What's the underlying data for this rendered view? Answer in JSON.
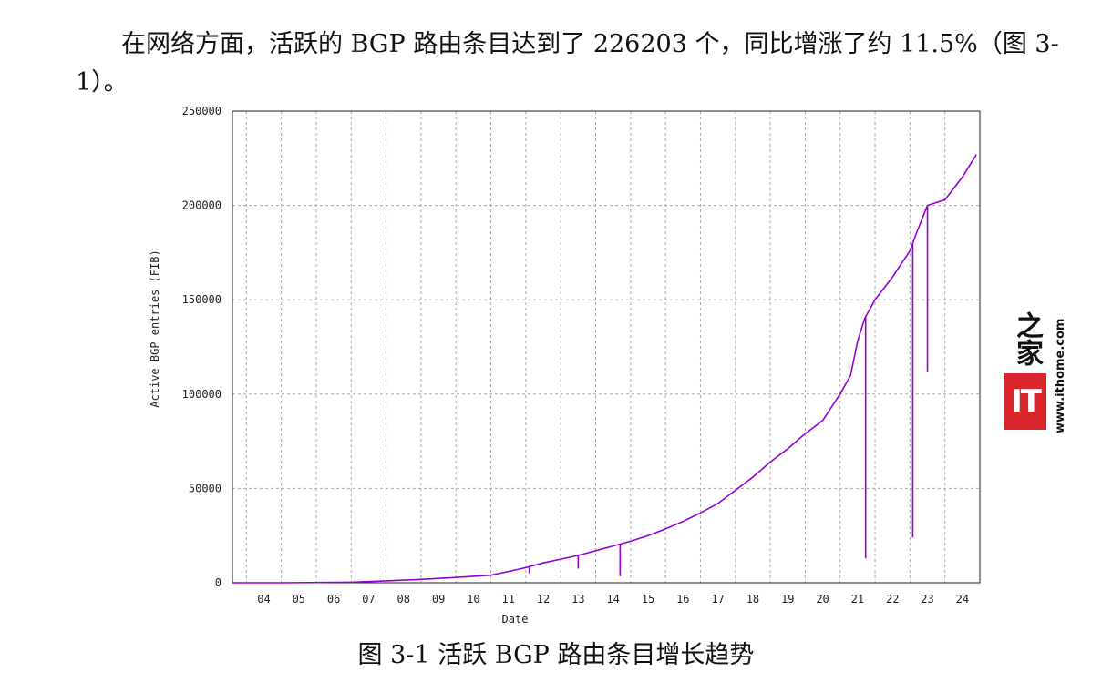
{
  "paragraph": "在网络方面，活跃的 BGP 路由条目达到了 226203 个，同比增涨了约 11.5%（图 3-1）。",
  "caption": "图 3-1 活跃 BGP 路由条目增长趋势",
  "watermark": {
    "logo_chars": "之家",
    "badge": "IT",
    "url": "www.ithome.com"
  },
  "chart_data": {
    "type": "line",
    "title": "",
    "xlabel": "Date",
    "ylabel": "Active BGP entries (FIB)",
    "x_ticks": [
      "04",
      "05",
      "06",
      "07",
      "08",
      "09",
      "10",
      "11",
      "12",
      "13",
      "14",
      "15",
      "16",
      "17",
      "18",
      "19",
      "20",
      "21",
      "22",
      "23",
      "24"
    ],
    "xlim": [
      2003.6,
      2025.0
    ],
    "ylim": [
      0,
      250000
    ],
    "y_ticks": [
      0,
      50000,
      100000,
      150000,
      200000,
      250000
    ],
    "grid": true,
    "color": "#9400d3",
    "series": [
      {
        "x": [
          2003.6,
          2005.0,
          2007.0,
          2008.0,
          2009.0,
          2010.0,
          2011.0,
          2011.5,
          2012.0,
          2012.5,
          2013.0,
          2013.5,
          2014.0,
          2014.5,
          2015.0,
          2015.5,
          2016.0,
          2016.5,
          2017.0,
          2017.5,
          2018.0,
          2018.5,
          2019.0,
          2019.5,
          2020.0,
          2020.5,
          2021.0,
          2021.3,
          2021.5,
          2021.7,
          2022.0,
          2022.5,
          2023.0,
          2023.2,
          2023.5,
          2024.0,
          2024.5,
          2024.9
        ],
        "y": [
          0,
          0,
          300,
          1000,
          1800,
          2800,
          4000,
          6000,
          8000,
          10500,
          12500,
          14500,
          17000,
          19500,
          22000,
          25000,
          28500,
          32500,
          37000,
          42000,
          49000,
          56000,
          64000,
          71000,
          79000,
          86000,
          100000,
          110000,
          128000,
          140000,
          150000,
          162000,
          176000,
          186000,
          200000,
          203000,
          215000,
          227000
        ]
      }
    ],
    "spikes": [
      {
        "x": 2012.1,
        "y": 5000
      },
      {
        "x": 2013.5,
        "y": 7500
      },
      {
        "x": 2014.7,
        "y": 3500
      },
      {
        "x": 2021.73,
        "y": 13000
      },
      {
        "x": 2023.08,
        "y": 24000
      },
      {
        "x": 2023.5,
        "y": 112000
      }
    ]
  }
}
